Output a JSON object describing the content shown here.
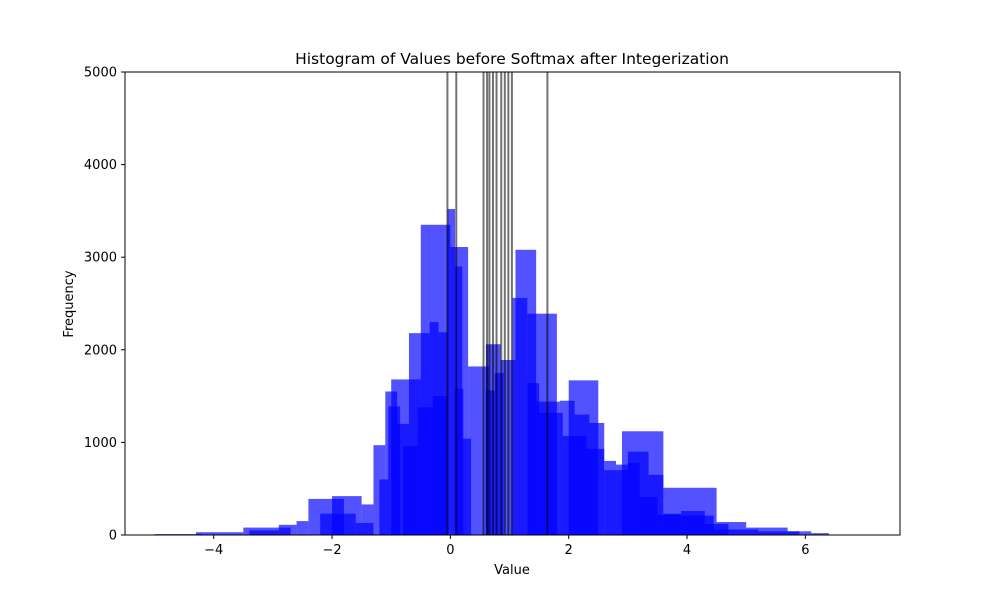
{
  "chart_data": {
    "type": "bar",
    "title": "Histogram of Values before Softmax after Integerization",
    "xlabel": "Value",
    "ylabel": "Frequency",
    "xlim": [
      -5.5,
      7.6
    ],
    "ylim": [
      0,
      5000
    ],
    "xticks": [
      {
        "value": -4,
        "label": "−4"
      },
      {
        "value": -2,
        "label": "−2"
      },
      {
        "value": 0,
        "label": "0"
      },
      {
        "value": 2,
        "label": "2"
      },
      {
        "value": 4,
        "label": "4"
      },
      {
        "value": 6,
        "label": "6"
      }
    ],
    "yticks": [
      {
        "value": 0,
        "label": "0"
      },
      {
        "value": 1000,
        "label": "1000"
      },
      {
        "value": 2000,
        "label": "2000"
      },
      {
        "value": 3000,
        "label": "3000"
      },
      {
        "value": 4000,
        "label": "4000"
      },
      {
        "value": 5000,
        "label": "5000"
      }
    ],
    "bar_color": "#0000ff",
    "bar_opacity": 0.68,
    "series": [
      {
        "bins": [
          {
            "x0": -4.3,
            "x1": -3.5,
            "value": 30
          },
          {
            "x0": -3.5,
            "x1": -2.7,
            "value": 80
          },
          {
            "x0": -2.4,
            "x1": -1.8,
            "value": 390
          },
          {
            "x0": -1.0,
            "x1": -0.5,
            "value": 1680
          },
          {
            "x0": -0.5,
            "x1": 0.0,
            "value": 3350
          },
          {
            "x0": 0.0,
            "x1": 0.3,
            "value": 3110
          },
          {
            "x0": 0.3,
            "x1": 0.65,
            "value": 1820
          },
          {
            "x0": 1.3,
            "x1": 1.8,
            "value": 2390
          },
          {
            "x0": 2.0,
            "x1": 2.5,
            "value": 1670
          },
          {
            "x0": 2.9,
            "x1": 3.6,
            "value": 1120
          },
          {
            "x0": 3.6,
            "x1": 4.5,
            "value": 510
          },
          {
            "x0": 4.5,
            "x1": 5.0,
            "value": 140
          },
          {
            "x0": 5.0,
            "x1": 5.7,
            "value": 80
          }
        ]
      },
      {
        "bins": [
          {
            "x0": -5.0,
            "x1": -4.2,
            "value": 10
          },
          {
            "x0": -2.9,
            "x1": -2.6,
            "value": 110
          },
          {
            "x0": -2.6,
            "x1": -2.4,
            "value": 150
          },
          {
            "x0": -2.0,
            "x1": -1.5,
            "value": 420
          },
          {
            "x0": -1.5,
            "x1": -1.3,
            "value": 330
          },
          {
            "x0": -1.3,
            "x1": -1.1,
            "value": 970
          },
          {
            "x0": -1.1,
            "x1": -0.9,
            "value": 1550
          },
          {
            "x0": -0.9,
            "x1": -0.7,
            "value": 1200
          },
          {
            "x0": -0.7,
            "x1": -0.35,
            "value": 2180
          },
          {
            "x0": -0.35,
            "x1": -0.2,
            "value": 2300
          },
          {
            "x0": -0.2,
            "x1": -0.05,
            "value": 2190
          },
          {
            "x0": -0.05,
            "x1": 0.08,
            "value": 3520
          },
          {
            "x0": 0.08,
            "x1": 0.2,
            "value": 2900
          },
          {
            "x0": 0.2,
            "x1": 0.35,
            "value": 1040
          },
          {
            "x0": 0.6,
            "x1": 0.85,
            "value": 2060
          },
          {
            "x0": 0.85,
            "x1": 1.1,
            "value": 1890
          },
          {
            "x0": 1.1,
            "x1": 1.45,
            "value": 3080
          },
          {
            "x0": 1.45,
            "x1": 1.85,
            "value": 1440
          },
          {
            "x0": 1.85,
            "x1": 2.1,
            "value": 1450
          },
          {
            "x0": 2.1,
            "x1": 2.35,
            "value": 1300
          },
          {
            "x0": 2.35,
            "x1": 2.6,
            "value": 1210
          },
          {
            "x0": 2.6,
            "x1": 2.8,
            "value": 800
          },
          {
            "x0": 2.8,
            "x1": 3.0,
            "value": 760
          },
          {
            "x0": 3.0,
            "x1": 3.35,
            "value": 900
          },
          {
            "x0": 3.35,
            "x1": 3.6,
            "value": 650
          },
          {
            "x0": 3.6,
            "x1": 3.9,
            "value": 230
          },
          {
            "x0": 3.9,
            "x1": 4.3,
            "value": 260
          },
          {
            "x0": 4.3,
            "x1": 4.7,
            "value": 120
          },
          {
            "x0": 5.7,
            "x1": 6.1,
            "value": 40
          },
          {
            "x0": 6.1,
            "x1": 6.4,
            "value": 20
          }
        ]
      },
      {
        "bins": [
          {
            "x0": -3.4,
            "x1": -2.9,
            "value": 50
          },
          {
            "x0": -2.2,
            "x1": -1.6,
            "value": 230
          },
          {
            "x0": -1.6,
            "x1": -1.3,
            "value": 130
          },
          {
            "x0": -1.2,
            "x1": -1.05,
            "value": 600
          },
          {
            "x0": -1.05,
            "x1": -0.85,
            "value": 1390
          },
          {
            "x0": -0.8,
            "x1": -0.55,
            "value": 960
          },
          {
            "x0": -0.55,
            "x1": -0.3,
            "value": 1380
          },
          {
            "x0": -0.3,
            "x1": -0.05,
            "value": 1500
          },
          {
            "x0": 0.08,
            "x1": 0.22,
            "value": 1580
          },
          {
            "x0": 0.6,
            "x1": 0.75,
            "value": 1560
          },
          {
            "x0": 0.75,
            "x1": 0.9,
            "value": 1750
          },
          {
            "x0": 1.05,
            "x1": 1.3,
            "value": 2560
          },
          {
            "x0": 1.3,
            "x1": 1.5,
            "value": 1640
          },
          {
            "x0": 1.5,
            "x1": 1.9,
            "value": 1320
          },
          {
            "x0": 1.9,
            "x1": 2.3,
            "value": 1070
          },
          {
            "x0": 2.3,
            "x1": 2.6,
            "value": 930
          },
          {
            "x0": 2.6,
            "x1": 3.0,
            "value": 700
          },
          {
            "x0": 3.0,
            "x1": 3.2,
            "value": 780
          },
          {
            "x0": 3.2,
            "x1": 3.5,
            "value": 410
          },
          {
            "x0": 3.5,
            "x1": 3.9,
            "value": 220
          },
          {
            "x0": 3.9,
            "x1": 4.45,
            "value": 210
          },
          {
            "x0": 4.45,
            "x1": 5.2,
            "value": 60
          },
          {
            "x0": 5.2,
            "x1": 5.9,
            "value": 40
          }
        ]
      }
    ],
    "vlines": {
      "color": "#000000",
      "opacity": 0.55,
      "x": [
        -0.05,
        0.1,
        0.56,
        0.62,
        0.66,
        0.72,
        0.78,
        0.86,
        0.92,
        0.98,
        1.04,
        1.64
      ]
    }
  }
}
